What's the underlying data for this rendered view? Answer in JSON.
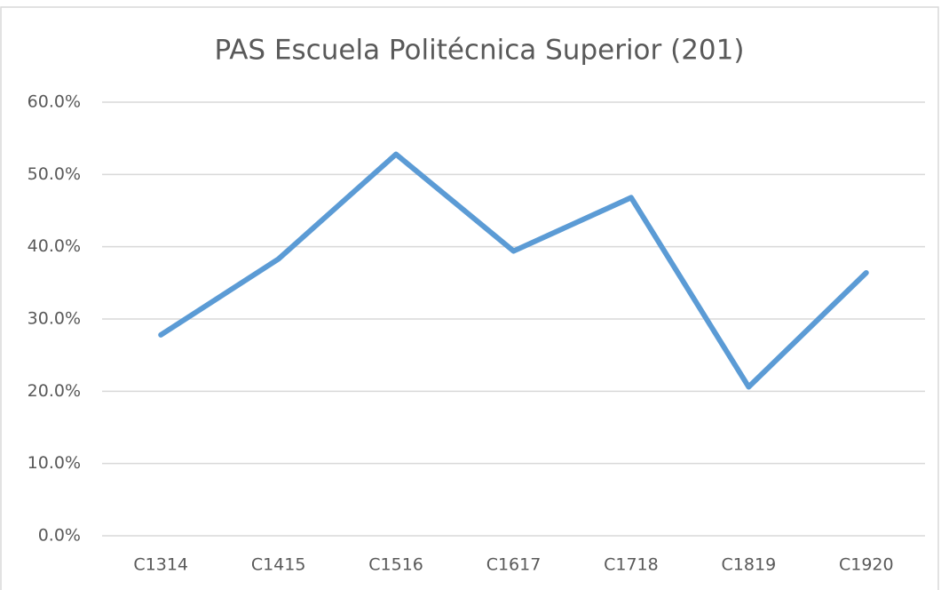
{
  "chart_data": {
    "type": "line",
    "title": "PAS Escuela Politécnica Superior (201)",
    "categories": [
      "C1314",
      "C1415",
      "C1516",
      "C1617",
      "C1718",
      "C1819",
      "C1920"
    ],
    "values": [
      27.8,
      38.3,
      52.8,
      39.4,
      46.8,
      20.6,
      36.4
    ],
    "color": "#5b9bd5",
    "ylim": [
      0,
      60
    ],
    "yticks": [
      {
        "value": 0,
        "label": "0.0%"
      },
      {
        "value": 10,
        "label": "10.0%"
      },
      {
        "value": 20,
        "label": "20.0%"
      },
      {
        "value": 30,
        "label": "30.0%"
      },
      {
        "value": 40,
        "label": "40.0%"
      },
      {
        "value": 50,
        "label": "50.0%"
      },
      {
        "value": 60,
        "label": "60.0%"
      }
    ],
    "grid": true
  }
}
